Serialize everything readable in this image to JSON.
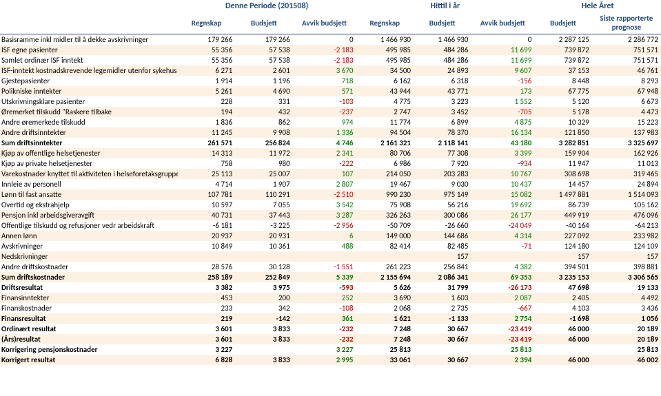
{
  "header_groups": [
    {
      "label": "Denne Periode (201508)",
      "span": 3
    },
    {
      "label": "Hittil i år",
      "span": 3
    },
    {
      "label": "Hele Året",
      "span": 2
    }
  ],
  "columns": [
    "Regnskap",
    "Budsjett",
    "Avvik budsjett",
    "Regnskap",
    "Budsjett",
    "Avvik budsjett",
    "Budsjett",
    "Siste rapporterte prognose"
  ],
  "colored_cols": [
    2,
    5
  ],
  "rows": [
    {
      "label": "Basisramme inkl midler til å dekke avskrivninger",
      "v": [
        179266,
        179266,
        0,
        1466930,
        1466930,
        0,
        2287125,
        2286772
      ]
    },
    {
      "label": "ISF egne pasienter",
      "v": [
        55356,
        57538,
        -2183,
        495985,
        484286,
        11699,
        739872,
        751571
      ]
    },
    {
      "label": "Samlet ordinær ISF inntekt",
      "v": [
        55356,
        57538,
        -2183,
        495985,
        484286,
        11699,
        739872,
        751571
      ]
    },
    {
      "label": "ISF-inntekt kostnadskrevende legemidler utenfor sykehus",
      "v": [
        6271,
        2601,
        3670,
        34500,
        24893,
        9607,
        37153,
        46761
      ]
    },
    {
      "label": "Gjestepasienter",
      "v": [
        1914,
        1196,
        718,
        6162,
        6318,
        -156,
        8448,
        8293
      ]
    },
    {
      "label": "Polikniske inntekter",
      "v": [
        5261,
        4690,
        571,
        43944,
        43771,
        173,
        67775,
        67948
      ]
    },
    {
      "label": "Utskrivningsklare pasienter",
      "v": [
        228,
        331,
        -103,
        4775,
        3223,
        1552,
        5120,
        6673
      ]
    },
    {
      "label": "Øremerket tilskudd \"Raskere tilbake",
      "v": [
        194,
        432,
        -237,
        2747,
        3452,
        -705,
        5178,
        4473
      ]
    },
    {
      "label": "Andre øremerkede tilskudd",
      "v": [
        1836,
        862,
        974,
        11774,
        6899,
        4875,
        10329,
        15223
      ]
    },
    {
      "label": "Andre driftsinntekter",
      "v": [
        11245,
        9908,
        1336,
        94504,
        78370,
        16134,
        121850,
        137983
      ]
    },
    {
      "label": "Sum driftsinntekter",
      "sum": true,
      "v": [
        261571,
        256824,
        4746,
        2161321,
        2118141,
        43180,
        3282851,
        3325697
      ]
    },
    {
      "label": "Kjøp av offentlige helsetjenester",
      "v": [
        14313,
        11972,
        2341,
        80706,
        77308,
        3399,
        159904,
        162926
      ]
    },
    {
      "label": "Kjøp av private helsetjenester",
      "v": [
        758,
        980,
        -222,
        6986,
        7920,
        -934,
        11947,
        11013
      ]
    },
    {
      "label": "Varekostnader knyttet til aktiviteten i helseforetaksgruppen",
      "v": [
        25113,
        25007,
        107,
        214050,
        203283,
        10767,
        308698,
        319465
      ]
    },
    {
      "label": "Innleie av personell",
      "v": [
        4714,
        1907,
        2807,
        19467,
        9030,
        10437,
        14457,
        24894
      ]
    },
    {
      "label": "Lønn til fast ansatte",
      "v": [
        107781,
        110291,
        -2510,
        990230,
        975149,
        15082,
        1497881,
        1514093
      ]
    },
    {
      "label": "Overtid og ekstrahjelp",
      "v": [
        10597,
        7055,
        3542,
        75908,
        56216,
        19692,
        86739,
        105162
      ]
    },
    {
      "label": "Pensjon inkl arbeidsgiveravgift",
      "v": [
        40731,
        37443,
        3287,
        326263,
        300086,
        26177,
        449919,
        476096
      ]
    },
    {
      "label": "Offentlige tilskudd og refusjoner vedr arbeidskraft",
      "v": [
        -6181,
        -3225,
        -2956,
        -50709,
        -26660,
        -24049,
        -40164,
        -64213
      ]
    },
    {
      "label": "Annen lønn",
      "v": [
        20937,
        20931,
        6,
        149000,
        144686,
        4314,
        227092,
        233982
      ]
    },
    {
      "label": "Avskrivninger",
      "v": [
        10849,
        10361,
        488,
        82414,
        82485,
        -71,
        124180,
        124109
      ]
    },
    {
      "label": "Nedskrivninger",
      "v": [
        null,
        null,
        null,
        null,
        157,
        null,
        157,
        157
      ]
    },
    {
      "label": "Andre driftskostnader",
      "v": [
        28576,
        30128,
        -1551,
        261223,
        256841,
        4382,
        394501,
        398881
      ]
    },
    {
      "label": "Sum driftskostnader",
      "sum": true,
      "v": [
        258189,
        252849,
        5339,
        2155694,
        2086341,
        69353,
        3235153,
        3306565
      ]
    },
    {
      "label": "Driftsresultat",
      "sum": true,
      "v": [
        3382,
        3975,
        -593,
        5626,
        31799,
        -26173,
        47698,
        19133
      ]
    },
    {
      "label": "Finansinntekter",
      "v": [
        453,
        200,
        252,
        3690,
        1603,
        2087,
        2405,
        4492
      ]
    },
    {
      "label": "Finanskostnader",
      "v": [
        233,
        342,
        -108,
        2068,
        2735,
        -667,
        4103,
        3436
      ]
    },
    {
      "label": "Finansresultat",
      "sum": true,
      "v": [
        219,
        -142,
        361,
        1621,
        -1133,
        2754,
        -1698,
        1056
      ]
    },
    {
      "label": "Ordinært resultat",
      "sum": true,
      "v": [
        3601,
        3833,
        -232,
        7248,
        30667,
        -23419,
        46000,
        20189
      ]
    },
    {
      "label": "(Års)resultat",
      "sum": true,
      "v": [
        3601,
        3833,
        -232,
        7248,
        30667,
        -23419,
        46000,
        20189
      ]
    },
    {
      "label": "Korrigering pensjonskostnader",
      "sum": true,
      "v": [
        3227,
        null,
        3227,
        25813,
        null,
        25813,
        null,
        25813
      ]
    },
    {
      "label": "Korrigert resultat",
      "sum": true,
      "v": [
        6828,
        3833,
        2995,
        33061,
        30667,
        2394,
        46000,
        46002
      ]
    }
  ],
  "colors": {
    "header_text": "#1f497d",
    "stripe": "#fdf1e3",
    "neg": "#c00000",
    "pos": "#007a00"
  }
}
